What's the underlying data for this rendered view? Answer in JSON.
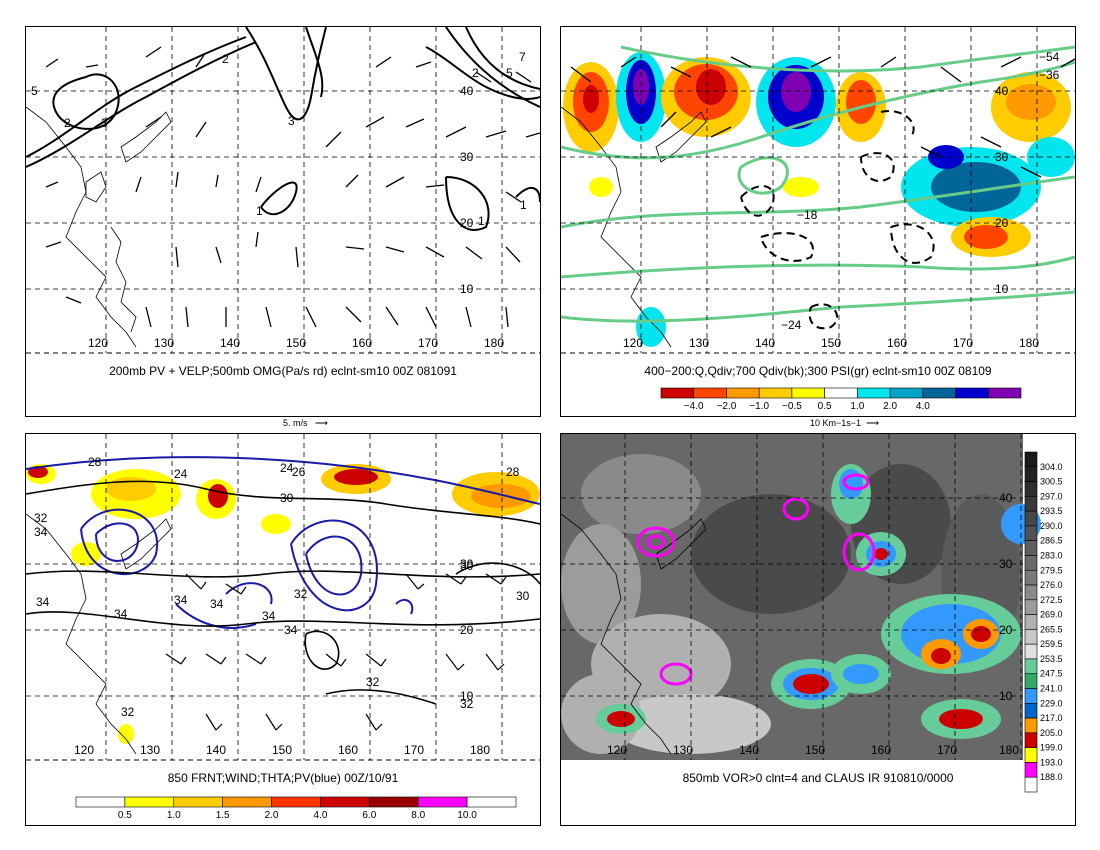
{
  "panels": [
    {
      "id": "tl",
      "title": "200mb PV + VELP;500mb OMG(Pa/s rd) eclnt-sm10 00Z 081091",
      "lon_labels": [
        "120",
        "130",
        "140",
        "150",
        "160",
        "170",
        "180"
      ],
      "lat_labels": [
        "40",
        "30",
        "20",
        "10"
      ],
      "contour_labels": [
        "5",
        "2",
        "3",
        "7",
        "2",
        "5",
        "2",
        "3",
        "1",
        "1",
        "1"
      ],
      "scale_label": "5. m/s"
    },
    {
      "id": "tr",
      "title": "400−200:Q,Qdiv;700 Qdiv(bk);300 PSI(gr) eclnt-sm10 00Z 08109",
      "lon_labels": [
        "120",
        "130",
        "140",
        "150",
        "160",
        "170",
        "180"
      ],
      "lat_labels": [
        "40",
        "30",
        "20",
        "10"
      ],
      "contour_labels": [
        "−24",
        "−18",
        "−54",
        "−36"
      ],
      "scale_label": "10 Km−1s−1",
      "colorbar": {
        "labels": [
          "−4.0",
          "−2.0",
          "−1.0",
          "−0.5",
          "0.5",
          "1.0",
          "2.0",
          "4.0"
        ],
        "colors": [
          "#cc0000",
          "#ff4500",
          "#ff9900",
          "#ffcc00",
          "#ffff00",
          "#ffffff",
          "#00e5ee",
          "#00a3c8",
          "#006699",
          "#0000cc",
          "#7f00b2"
        ]
      }
    },
    {
      "id": "bl",
      "title": "850 FRNT;WIND;THTA;PV(blue) 00Z/10/91",
      "lon_labels": [
        "120",
        "130",
        "140",
        "150",
        "160",
        "170",
        "180"
      ],
      "lat_labels": [
        "30",
        "20",
        "10"
      ],
      "contour_labels": [
        "28",
        "24",
        "24",
        "26",
        "28",
        "30",
        "32",
        "34",
        "34",
        "34",
        "34",
        "34",
        "34",
        "32",
        "30",
        "32",
        "32",
        "30",
        "32",
        "34"
      ],
      "colorbar": {
        "labels": [
          "0.5",
          "1.0",
          "1.5",
          "2.0",
          "4.0",
          "6.0",
          "8.0",
          "10.0"
        ],
        "colors": [
          "#ffffff",
          "#ffff00",
          "#ffcc00",
          "#ff9900",
          "#ff3300",
          "#cc0000",
          "#990000",
          "#ff00ff",
          "#ffffff"
        ]
      }
    },
    {
      "id": "br",
      "title": "850mb VOR>0 clnt=4 and CLAUS IR 910810/0000",
      "lon_labels": [
        "120",
        "130",
        "140",
        "150",
        "160",
        "170",
        "180"
      ],
      "lat_labels": [
        "40",
        "30",
        "20",
        "10"
      ],
      "colorbar": {
        "labels": [
          "304.0",
          "300.5",
          "297.0",
          "293.5",
          "290.0",
          "286.5",
          "283.0",
          "279.5",
          "276.0",
          "272.5",
          "269.0",
          "265.5",
          "259.5",
          "253.5",
          "247.5",
          "241.0",
          "229.0",
          "217.0",
          "205.0",
          "199.0",
          "193.0",
          "188.0"
        ],
        "colors": [
          "#1a1a1a",
          "#222222",
          "#2e2e2e",
          "#3a3a3a",
          "#464646",
          "#525252",
          "#5e5e5e",
          "#6a6a6a",
          "#7a7a7a",
          "#8a8a8a",
          "#9c9c9c",
          "#b0b0b0",
          "#c8c8c8",
          "#e0e0e0",
          "#66cc99",
          "#33aa66",
          "#3399ff",
          "#0066cc",
          "#ff9900",
          "#cc0000",
          "#ffff00",
          "#ff00ff",
          "#ffffff"
        ]
      }
    }
  ]
}
